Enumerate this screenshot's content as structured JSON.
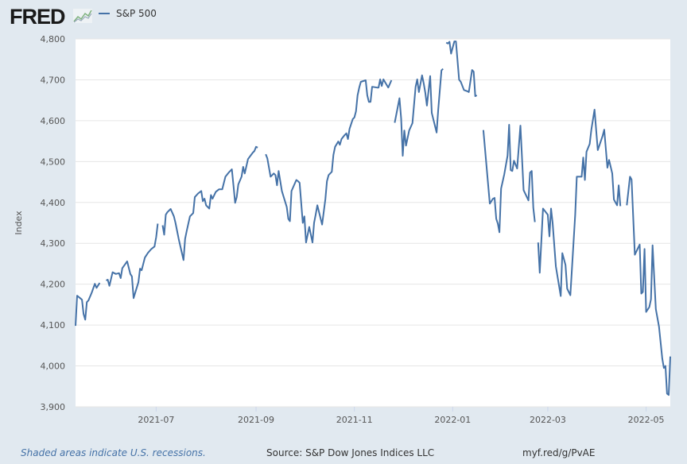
{
  "header": {
    "logo": "FRED",
    "logo_icon": "fred-graph-icon"
  },
  "footer": {
    "recession_note": "Shaded areas indicate U.S. recessions.",
    "source": "Source: S&P Dow Jones Indices LLC",
    "url": "myf.red/g/PvAE"
  },
  "chart_data": {
    "type": "line",
    "title": "",
    "xlabel": "",
    "ylabel": "Index",
    "xlim": [
      "2021-05-12",
      "2022-05-16"
    ],
    "ylim": [
      3900,
      4800
    ],
    "yticks": [
      3900,
      4000,
      4100,
      4200,
      4300,
      4400,
      4500,
      4600,
      4700,
      4800
    ],
    "ytick_labels": [
      "3,900",
      "4,000",
      "4,100",
      "4,200",
      "4,300",
      "4,400",
      "4,500",
      "4,600",
      "4,700",
      "4,800"
    ],
    "xticks": [
      "2021-07-01",
      "2021-09-01",
      "2021-11-01",
      "2022-01-01",
      "2022-03-01",
      "2022-05-01"
    ],
    "xtick_labels": [
      "2021-07",
      "2021-09",
      "2021-11",
      "2022-01",
      "2022-03",
      "2022-05"
    ],
    "grid": true,
    "legend": "top-left",
    "line_color": "#4572a7",
    "series": [
      {
        "name": "S&P 500",
        "points": [
          [
            "2021-05-12",
            4098
          ],
          [
            "2021-05-13",
            4172
          ],
          [
            "2021-05-16",
            4162
          ],
          [
            "2021-05-17",
            4127
          ],
          [
            "2021-05-18",
            4113
          ],
          [
            "2021-05-19",
            4156
          ],
          [
            "2021-05-20",
            4160
          ],
          [
            "2021-05-22",
            4179
          ],
          [
            "2021-05-24",
            4201
          ],
          [
            "2021-05-25",
            4191
          ],
          [
            "2021-05-27",
            4203
          ],
          [
            "2021-05-28",
            null
          ],
          [
            "2021-05-31",
            4209
          ],
          [
            "2021-06-01",
            4211
          ],
          [
            "2021-06-02",
            4196
          ],
          [
            "2021-06-04",
            4229
          ],
          [
            "2021-06-06",
            4225
          ],
          [
            "2021-06-08",
            4227
          ],
          [
            "2021-06-09",
            4215
          ],
          [
            "2021-06-10",
            4239
          ],
          [
            "2021-06-12",
            4250
          ],
          [
            "2021-06-13",
            4256
          ],
          [
            "2021-06-15",
            4225
          ],
          [
            "2021-06-16",
            4219
          ],
          [
            "2021-06-17",
            4166
          ],
          [
            "2021-06-20",
            4205
          ],
          [
            "2021-06-21",
            4238
          ],
          [
            "2021-06-22",
            4234
          ],
          [
            "2021-06-24",
            4265
          ],
          [
            "2021-06-26",
            4277
          ],
          [
            "2021-06-28",
            4286
          ],
          [
            "2021-06-30",
            4292
          ],
          [
            "2021-07-01",
            4315
          ],
          [
            "2021-07-02",
            4348
          ],
          [
            "2021-07-03",
            null
          ],
          [
            "2021-07-05",
            4344
          ],
          [
            "2021-07-06",
            4321
          ],
          [
            "2021-07-07",
            4370
          ],
          [
            "2021-07-08",
            4376
          ],
          [
            "2021-07-10",
            4384
          ],
          [
            "2021-07-12",
            4366
          ],
          [
            "2021-07-13",
            4350
          ],
          [
            "2021-07-15",
            4311
          ],
          [
            "2021-07-18",
            4259
          ],
          [
            "2021-07-19",
            4311
          ],
          [
            "2021-07-20",
            4331
          ],
          [
            "2021-07-22",
            4366
          ],
          [
            "2021-07-24",
            4374
          ],
          [
            "2021-07-25",
            4413
          ],
          [
            "2021-07-27",
            4422
          ],
          [
            "2021-07-29",
            4428
          ],
          [
            "2021-07-30",
            4403
          ],
          [
            "2021-07-31",
            4409
          ],
          [
            "2021-08-01",
            4393
          ],
          [
            "2021-08-03",
            4385
          ],
          [
            "2021-08-04",
            4418
          ],
          [
            "2021-08-05",
            4409
          ],
          [
            "2021-08-07",
            4426
          ],
          [
            "2021-08-09",
            4432
          ],
          [
            "2021-08-11",
            4432
          ],
          [
            "2021-08-13",
            4463
          ],
          [
            "2021-08-15",
            4473
          ],
          [
            "2021-08-17",
            4481
          ],
          [
            "2021-08-18",
            4440
          ],
          [
            "2021-08-19",
            4399
          ],
          [
            "2021-08-20",
            4413
          ],
          [
            "2021-08-21",
            4444
          ],
          [
            "2021-08-23",
            4463
          ],
          [
            "2021-08-24",
            4487
          ],
          [
            "2021-08-25",
            4471
          ],
          [
            "2021-08-27",
            4506
          ],
          [
            "2021-08-30",
            4522
          ],
          [
            "2021-08-31",
            4526
          ],
          [
            "2021-09-01",
            4536
          ],
          [
            "2021-09-02",
            4534
          ],
          [
            "2021-09-03",
            null
          ],
          [
            "2021-09-07",
            4518
          ],
          [
            "2021-09-08",
            4508
          ],
          [
            "2021-09-10",
            4463
          ],
          [
            "2021-09-12",
            4471
          ],
          [
            "2021-09-13",
            4467
          ],
          [
            "2021-09-14",
            4442
          ],
          [
            "2021-09-15",
            4477
          ],
          [
            "2021-09-17",
            4428
          ],
          [
            "2021-09-20",
            4389
          ],
          [
            "2021-09-21",
            4360
          ],
          [
            "2021-09-22",
            4354
          ],
          [
            "2021-09-23",
            4428
          ],
          [
            "2021-09-26",
            4455
          ],
          [
            "2021-09-27",
            4452
          ],
          [
            "2021-09-28",
            4448
          ],
          [
            "2021-09-30",
            4350
          ],
          [
            "2021-10-01",
            4366
          ],
          [
            "2021-10-02",
            4302
          ],
          [
            "2021-10-03",
            4321
          ],
          [
            "2021-10-04",
            4340
          ],
          [
            "2021-10-06",
            4302
          ],
          [
            "2021-10-07",
            4350
          ],
          [
            "2021-10-08",
            4370
          ],
          [
            "2021-10-09",
            4393
          ],
          [
            "2021-10-12",
            4346
          ],
          [
            "2021-10-14",
            4408
          ],
          [
            "2021-10-15",
            4452
          ],
          [
            "2021-10-16",
            4467
          ],
          [
            "2021-10-18",
            4475
          ],
          [
            "2021-10-19",
            4516
          ],
          [
            "2021-10-20",
            4536
          ],
          [
            "2021-10-22",
            4549
          ],
          [
            "2021-10-23",
            4541
          ],
          [
            "2021-10-24",
            4555
          ],
          [
            "2021-10-26",
            4565
          ],
          [
            "2021-10-27",
            4569
          ],
          [
            "2021-10-28",
            4555
          ],
          [
            "2021-10-29",
            4580
          ],
          [
            "2021-10-31",
            4604
          ],
          [
            "2021-11-01",
            4608
          ],
          [
            "2021-11-02",
            4623
          ],
          [
            "2021-11-03",
            4662
          ],
          [
            "2021-11-04",
            4681
          ],
          [
            "2021-11-05",
            4695
          ],
          [
            "2021-11-08",
            4699
          ],
          [
            "2021-11-09",
            4662
          ],
          [
            "2021-11-10",
            4646
          ],
          [
            "2021-11-11",
            4646
          ],
          [
            "2021-11-12",
            4683
          ],
          [
            "2021-11-15",
            4681
          ],
          [
            "2021-11-16",
            4681
          ],
          [
            "2021-11-17",
            4701
          ],
          [
            "2021-11-18",
            4685
          ],
          [
            "2021-11-19",
            4701
          ],
          [
            "2021-11-22",
            4681
          ],
          [
            "2021-11-24",
            4699
          ],
          [
            "2021-11-25",
            null
          ],
          [
            "2021-11-26",
            4595
          ],
          [
            "2021-11-29",
            4655
          ],
          [
            "2021-11-30",
            4605
          ],
          [
            "2021-12-01",
            4514
          ],
          [
            "2021-12-02",
            4576
          ],
          [
            "2021-12-03",
            4539
          ],
          [
            "2021-12-05",
            4576
          ],
          [
            "2021-12-07",
            4594
          ],
          [
            "2021-12-09",
            4683
          ],
          [
            "2021-12-10",
            4701
          ],
          [
            "2021-12-11",
            4670
          ],
          [
            "2021-12-13",
            4711
          ],
          [
            "2021-12-14",
            4691
          ],
          [
            "2021-12-15",
            4668
          ],
          [
            "2021-12-16",
            4637
          ],
          [
            "2021-12-18",
            4709
          ],
          [
            "2021-12-19",
            4619
          ],
          [
            "2021-12-22",
            4571
          ],
          [
            "2021-12-23",
            4626
          ],
          [
            "2021-12-25",
            4723
          ],
          [
            "2021-12-26",
            4727
          ],
          [
            "2021-12-27",
            null
          ],
          [
            "2021-12-28",
            4791
          ],
          [
            "2021-12-29",
            4789
          ],
          [
            "2021-12-30",
            4793
          ],
          [
            "2021-12-31",
            4764
          ],
          [
            "2022-01-02",
            4794
          ],
          [
            "2022-01-03",
            4794
          ],
          [
            "2022-01-05",
            4700
          ],
          [
            "2022-01-06",
            4695
          ],
          [
            "2022-01-08",
            4675
          ],
          [
            "2022-01-10",
            4672
          ],
          [
            "2022-01-11",
            4670
          ],
          [
            "2022-01-13",
            4724
          ],
          [
            "2022-01-14",
            4720
          ],
          [
            "2022-01-15",
            4660
          ],
          [
            "2022-01-16",
            4662
          ],
          [
            "2022-01-17",
            null
          ],
          [
            "2022-01-20",
            4577
          ],
          [
            "2022-01-22",
            4488
          ],
          [
            "2022-01-24",
            4397
          ],
          [
            "2022-01-26",
            4409
          ],
          [
            "2022-01-27",
            4411
          ],
          [
            "2022-01-28",
            4360
          ],
          [
            "2022-01-29",
            4348
          ],
          [
            "2022-01-30",
            4327
          ],
          [
            "2022-01-31",
            4434
          ],
          [
            "2022-02-02",
            4469
          ],
          [
            "2022-02-04",
            4514
          ],
          [
            "2022-02-05",
            4590
          ],
          [
            "2022-02-06",
            4479
          ],
          [
            "2022-02-07",
            4477
          ],
          [
            "2022-02-08",
            4502
          ],
          [
            "2022-02-10",
            4483
          ],
          [
            "2022-02-12",
            4588
          ],
          [
            "2022-02-14",
            4430
          ],
          [
            "2022-02-17",
            4405
          ],
          [
            "2022-02-18",
            4473
          ],
          [
            "2022-02-19",
            4477
          ],
          [
            "2022-02-20",
            4387
          ],
          [
            "2022-02-21",
            4352
          ],
          [
            "2022-02-22",
            null
          ],
          [
            "2022-02-23",
            4302
          ],
          [
            "2022-02-24",
            4228
          ],
          [
            "2022-02-26",
            4385
          ],
          [
            "2022-03-01",
            4370
          ],
          [
            "2022-03-02",
            4317
          ],
          [
            "2022-03-03",
            4385
          ],
          [
            "2022-03-04",
            4350
          ],
          [
            "2022-03-06",
            4243
          ],
          [
            "2022-03-09",
            4171
          ],
          [
            "2022-03-10",
            4276
          ],
          [
            "2022-03-12",
            4247
          ],
          [
            "2022-03-13",
            4189
          ],
          [
            "2022-03-15",
            4173
          ],
          [
            "2022-03-18",
            4370
          ],
          [
            "2022-03-19",
            4463
          ],
          [
            "2022-03-22",
            4463
          ],
          [
            "2022-03-23",
            4510
          ],
          [
            "2022-03-24",
            4455
          ],
          [
            "2022-03-25",
            4524
          ],
          [
            "2022-03-27",
            4543
          ],
          [
            "2022-03-28",
            4578
          ],
          [
            "2022-03-30",
            4627
          ],
          [
            "2022-04-01",
            4528
          ],
          [
            "2022-04-04",
            4563
          ],
          [
            "2022-04-05",
            4578
          ],
          [
            "2022-04-07",
            4485
          ],
          [
            "2022-04-08",
            4504
          ],
          [
            "2022-04-10",
            4471
          ],
          [
            "2022-04-11",
            4407
          ],
          [
            "2022-04-13",
            4393
          ],
          [
            "2022-04-14",
            4442
          ],
          [
            "2022-04-15",
            4391
          ],
          [
            "2022-04-16",
            null
          ],
          [
            "2022-04-19",
            4393
          ],
          [
            "2022-04-21",
            4463
          ],
          [
            "2022-04-22",
            4456
          ],
          [
            "2022-04-24",
            4272
          ],
          [
            "2022-04-26",
            4289
          ],
          [
            "2022-04-27",
            4297
          ],
          [
            "2022-04-28",
            4177
          ],
          [
            "2022-04-29",
            4181
          ],
          [
            "2022-04-30",
            4286
          ],
          [
            "2022-05-01",
            4132
          ],
          [
            "2022-05-03",
            4144
          ],
          [
            "2022-05-04",
            4163
          ],
          [
            "2022-05-05",
            4295
          ],
          [
            "2022-05-07",
            4139
          ],
          [
            "2022-05-09",
            4096
          ],
          [
            "2022-05-11",
            4018
          ],
          [
            "2022-05-12",
            3995
          ],
          [
            "2022-05-13",
            4000
          ],
          [
            "2022-05-14",
            3932
          ],
          [
            "2022-05-15",
            3929
          ],
          [
            "2022-05-16",
            4023
          ]
        ]
      }
    ]
  }
}
